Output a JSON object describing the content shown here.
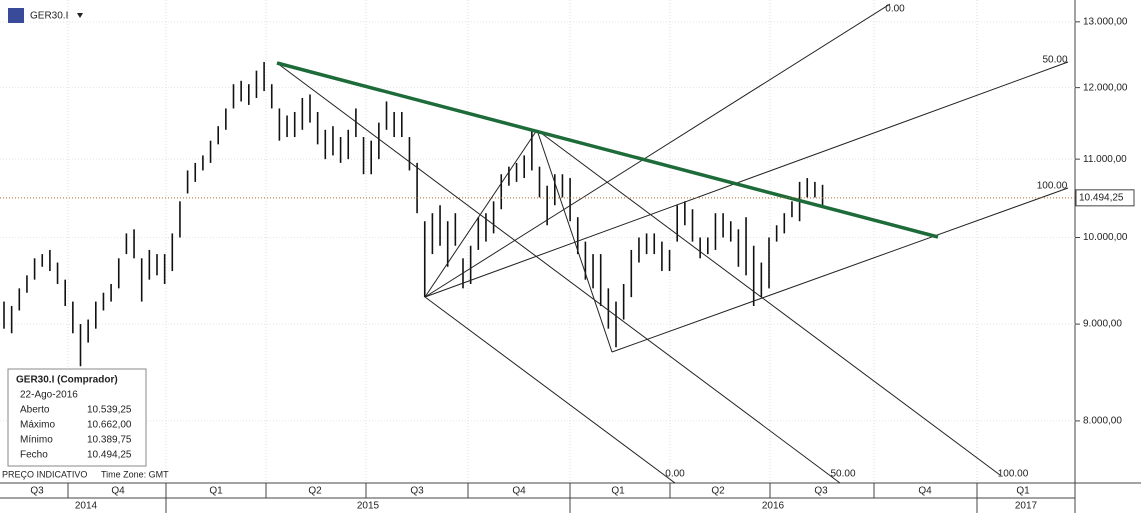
{
  "header": {
    "symbol": "GER30.I"
  },
  "chart_data": {
    "type": "ohlc",
    "low": [
      8950,
      8900,
      9150,
      9350,
      9500,
      9650,
      9600,
      9450,
      9200,
      8900,
      8550,
      8800,
      8950,
      9150,
      9250,
      9400,
      9800,
      9750,
      9250,
      9500,
      9550,
      9450,
      9600,
      10000,
      10550,
      10700,
      10850,
      10950,
      11200,
      11400,
      11700,
      11800,
      11750,
      11850,
      11950,
      11700,
      11250,
      11300,
      11300,
      11400,
      11500,
      11200,
      11000,
      11050,
      10950,
      11000,
      11300,
      10800,
      10800,
      11000,
      11400,
      11300,
      11300,
      10850,
      10300,
      9300,
      9800,
      9900,
      9650,
      9900,
      9400,
      9450,
      9850,
      9950,
      10050,
      10350,
      10650,
      10700,
      10750,
      10850,
      10500,
      10150,
      10400,
      10500,
      10200,
      9800,
      9500,
      9400,
      9200,
      8950,
      8750,
      9050,
      9300,
      9700,
      9800,
      9800,
      9600,
      9600,
      9950,
      10150,
      9950,
      9750,
      9800,
      9850,
      10000,
      9950,
      9650,
      9550,
      9200,
      9300,
      9400,
      9950,
      10050,
      10250,
      10200,
      10500,
      10500,
      10389.75
    ],
    "high": [
      9250,
      9200,
      9400,
      9550,
      9750,
      9800,
      9850,
      9700,
      9500,
      9250,
      9000,
      9050,
      9250,
      9350,
      9450,
      9750,
      10050,
      10100,
      9750,
      9850,
      9800,
      9800,
      10050,
      10450,
      10850,
      10950,
      11050,
      11250,
      11450,
      11700,
      12050,
      12100,
      12050,
      12250,
      12380,
      12050,
      11700,
      11600,
      11650,
      11850,
      11900,
      11650,
      11400,
      11450,
      11300,
      11400,
      11700,
      11300,
      11250,
      11500,
      11800,
      11650,
      11650,
      11300,
      10950,
      10200,
      10300,
      10400,
      10200,
      10300,
      9750,
      9900,
      10250,
      10300,
      10450,
      10800,
      10900,
      10950,
      11050,
      11400,
      10900,
      10650,
      10800,
      10800,
      10750,
      10250,
      9950,
      9800,
      9800,
      9400,
      9250,
      9450,
      9850,
      10000,
      10050,
      10050,
      9950,
      9850,
      10400,
      10450,
      10350,
      10000,
      10000,
      10300,
      10300,
      10200,
      10100,
      10250,
      9900,
      9700,
      10000,
      10150,
      10300,
      10450,
      10700,
      10750,
      10700,
      10662
    ],
    "ylim": [
      7418,
      13350
    ],
    "log_y": true,
    "yticks": [
      {
        "value": 8000,
        "label": "8.000,00"
      },
      {
        "value": 9000,
        "label": "9.000,00"
      },
      {
        "value": 10000,
        "label": "10.000,00"
      },
      {
        "value": 11000,
        "label": "11.000,00"
      },
      {
        "value": 12000,
        "label": "12.000,00"
      },
      {
        "value": 13000,
        "label": "13.000,00"
      }
    ],
    "current_price": {
      "value": 10494.25,
      "label": "10.494,25"
    },
    "quarters": [
      "Q3",
      "Q4",
      "Q1",
      "Q2",
      "Q3",
      "Q4",
      "Q1",
      "Q2",
      "Q3",
      "Q4",
      "Q1"
    ],
    "years": [
      "2014",
      "2015",
      "2016",
      "2017"
    ],
    "annotations": [
      "0.00",
      "50.00",
      "100.00",
      "0.00",
      "50.00",
      "100.00"
    ],
    "info_box": {
      "title": "GER30.I (Comprador)",
      "date": "22-Ago-2016",
      "rows": [
        [
          "Aberto",
          "10.539,25"
        ],
        [
          "Máximo",
          "10.662,00"
        ],
        [
          "Mínimo",
          "10.389,75"
        ],
        [
          "Fecho",
          "10.494,25"
        ]
      ]
    },
    "footer": [
      "PREÇO INDICATIVO",
      "Time Zone: GMT"
    ]
  }
}
